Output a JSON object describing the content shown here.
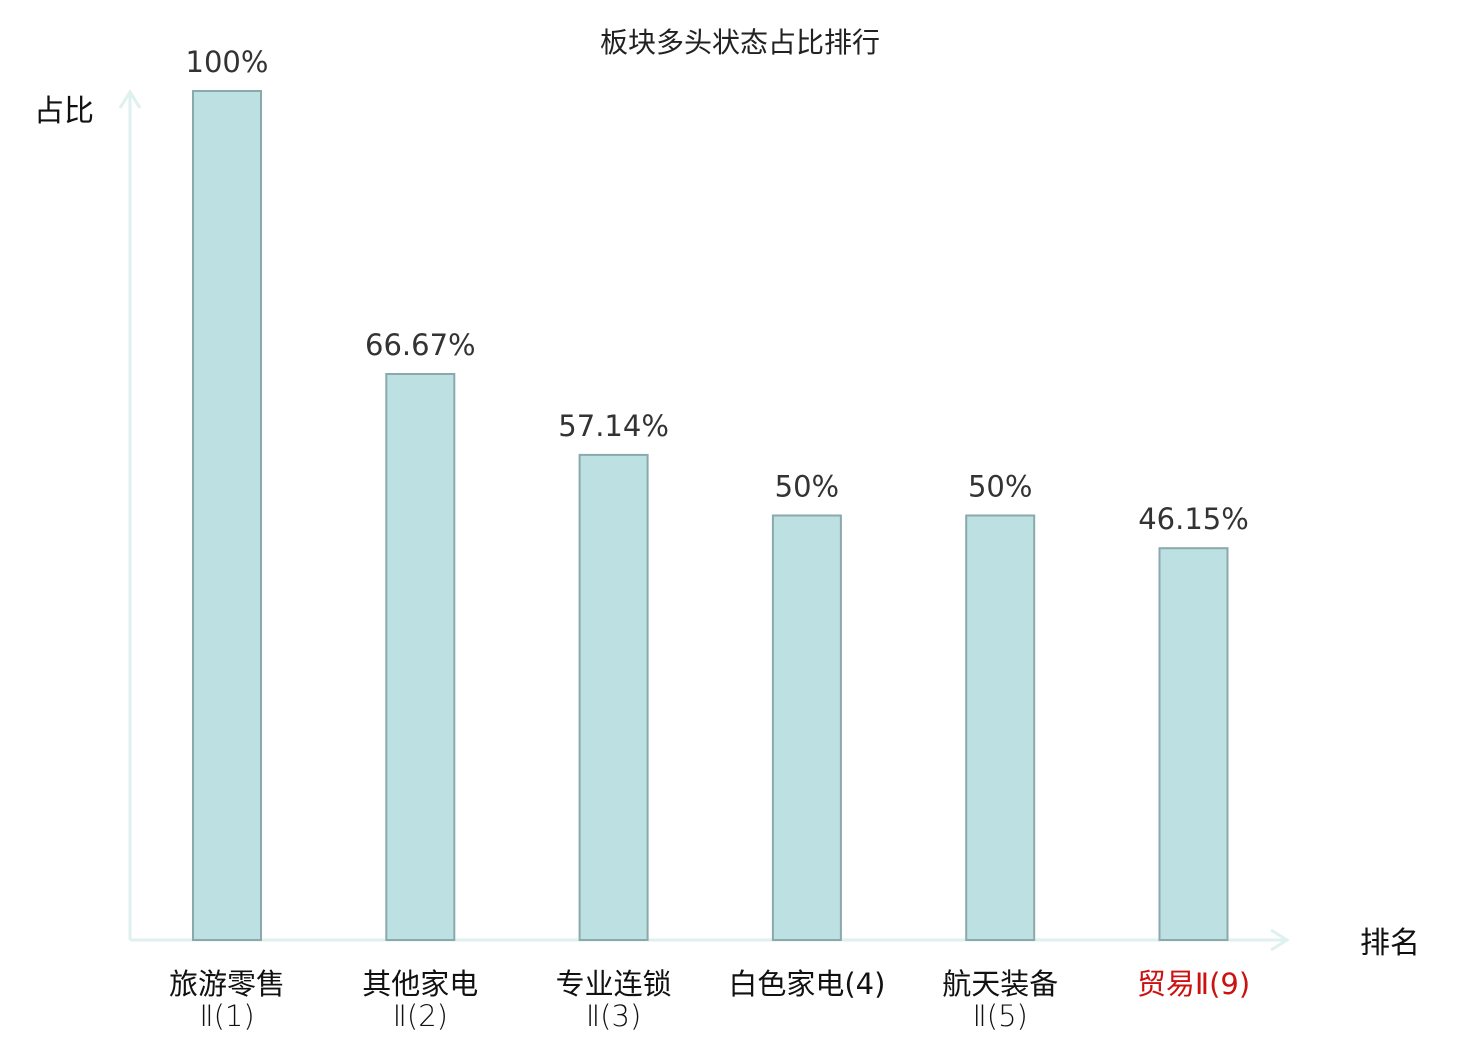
{
  "chart_data": {
    "type": "bar",
    "title": "板块多头状态占比排行",
    "ylabel": "占比",
    "xlabel": "排名",
    "ylim": [
      0,
      100
    ],
    "grid": false,
    "legend": "none",
    "categories": [
      {
        "line1": "旅游零售",
        "line2": "Ⅱ(1)",
        "highlight": false
      },
      {
        "line1": "其他家电",
        "line2": "Ⅱ(2)",
        "highlight": false
      },
      {
        "line1": "专业连锁",
        "line2": "Ⅱ(3)",
        "highlight": false
      },
      {
        "line1": "白色家电(4)",
        "line2": "",
        "highlight": false
      },
      {
        "line1": "航天装备",
        "line2": "Ⅱ(5)",
        "highlight": false
      },
      {
        "line1": "贸易Ⅱ(9)",
        "line2": "",
        "highlight": true
      }
    ],
    "values": [
      100,
      66.67,
      57.14,
      50,
      50,
      46.15
    ],
    "value_labels": [
      "100%",
      "66.67%",
      "57.14%",
      "50%",
      "50%",
      "46.15%"
    ]
  },
  "colors": {
    "bar_fill": "#bde0e2",
    "bar_stroke": "#8aa9ac",
    "axis": "#dff1ee",
    "category_text": "#111111",
    "highlight_text": "#cc1111",
    "value_text": "#333333"
  }
}
